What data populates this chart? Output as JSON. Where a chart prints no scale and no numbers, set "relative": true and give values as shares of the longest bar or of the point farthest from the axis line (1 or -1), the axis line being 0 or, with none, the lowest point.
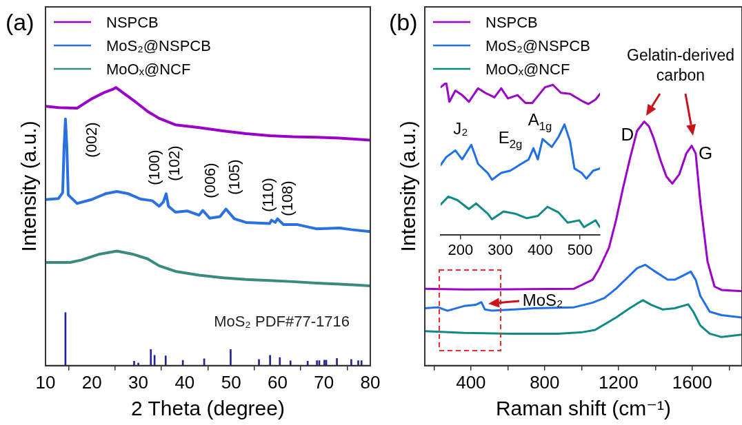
{
  "chart_data": [
    {
      "type": "line",
      "xlabel": "2 Theta (degree)",
      "ylabel": "Intensity (a.u.)",
      "relative": true,
      "xlim": [
        10,
        80
      ],
      "xticks": [
        10,
        20,
        30,
        40,
        50,
        60,
        70,
        80
      ],
      "legend": "top left",
      "marker": "none",
      "grid": false,
      "line_style": "solid",
      "series": [
        {
          "name": "NSPCB",
          "color": "#9a00c8",
          "x": [
            10,
            12.8,
            16.8,
            19.9,
            22.9,
            24.4,
            25.2,
            26.9,
            29.5,
            32.0,
            34.5,
            38.0,
            43.1,
            48.2,
            53.2,
            58.3,
            63.3,
            68.4,
            73.4,
            80
          ],
          "values": [
            0.933,
            0.928,
            0.926,
            0.959,
            0.984,
            0.993,
            1.0,
            0.979,
            0.947,
            0.914,
            0.889,
            0.866,
            0.856,
            0.844,
            0.834,
            0.827,
            0.823,
            0.821,
            0.818,
            0.811
          ]
        },
        {
          "name": "MoS₂@NSPCB",
          "color": "#2a70e0",
          "x": [
            10,
            12.8,
            13.7,
            14.0,
            14.3,
            14.6,
            14.9,
            16.8,
            19.9,
            22.9,
            25.4,
            27.9,
            30.5,
            33.0,
            34.5,
            35.4,
            36.0,
            36.5,
            38.0,
            40.6,
            43.1,
            43.9,
            45.4,
            47.6,
            48.9,
            50.7,
            53.2,
            58.3,
            58.7,
            59.5,
            60.0,
            61.3,
            64.3,
            68.4,
            73.4,
            75.9,
            80
          ],
          "values": [
            0.597,
            0.601,
            0.622,
            0.786,
            0.887,
            0.786,
            0.614,
            0.583,
            0.597,
            0.618,
            0.626,
            0.618,
            0.599,
            0.593,
            0.573,
            0.589,
            0.618,
            0.573,
            0.552,
            0.556,
            0.541,
            0.558,
            0.53,
            0.536,
            0.563,
            0.528,
            0.515,
            0.511,
            0.523,
            0.515,
            0.528,
            0.507,
            0.507,
            0.492,
            0.495,
            0.489,
            0.482
          ]
        },
        {
          "name": "MoOₓ@NCF",
          "color": "#3a8a80",
          "x": [
            10,
            15.3,
            17.8,
            21.4,
            25.4,
            29.0,
            32.0,
            34.5,
            38.0,
            43.1,
            48.2,
            53.2,
            58.3,
            63.3,
            68.4,
            73.4,
            80
          ],
          "values": [
            0.371,
            0.371,
            0.38,
            0.4,
            0.412,
            0.4,
            0.384,
            0.359,
            0.339,
            0.325,
            0.316,
            0.31,
            0.306,
            0.302,
            0.297,
            0.293,
            0.287
          ]
        },
        {
          "type": "bar",
          "name": "MoS₂ PDF#77-1716",
          "color": "#23239a",
          "x": [
            14.3,
            29.1,
            30.0,
            32.7,
            33.5,
            35.9,
            39.6,
            44.2,
            49.9,
            56.0,
            58.4,
            60.3,
            60.5,
            62.8,
            66.5,
            68.5,
            69.0,
            70.1,
            70.5,
            72.8,
            75.9,
            77.4,
            78.1
          ],
          "values": [
            0.191,
            0.016,
            0.009,
            0.058,
            0.037,
            0.035,
            0.019,
            0.025,
            0.058,
            0.022,
            0.037,
            null,
            0.029,
            0.017,
            0.016,
            0.018,
            0.018,
            0.02,
            0.02,
            0.026,
            0.022,
            0.018,
            0.018
          ]
        }
      ],
      "annotations": [
        "(a)",
        "(002)",
        "(100)",
        "(102)",
        "(006)",
        "(105)",
        "(110)",
        "(108)"
      ]
    },
    {
      "type": "line",
      "xlabel": "Raman shift (cm⁻¹)",
      "ylabel": "Intensity (a.u.)",
      "relative": true,
      "xlim": [
        150,
        1870
      ],
      "xticks": [
        {
          "value": 200,
          "label": null
        },
        400,
        {
          "value": 600,
          "label": null
        },
        800,
        {
          "value": 1000,
          "label": null
        },
        1200,
        {
          "value": 1400,
          "label": null
        },
        1600,
        {
          "value": 1800,
          "label": null
        }
      ],
      "legend": "top left",
      "marker": "none",
      "grid": false,
      "line_style": "solid",
      "series": [
        {
          "name": "NSPCB",
          "color": "#9b00cc",
          "x": [
            150,
            362,
            616,
            959,
            997,
            1060,
            1097,
            1149,
            1187,
            1225,
            1263,
            1301,
            1340,
            1365,
            1390,
            1429,
            1460,
            1492,
            1530,
            1568,
            1597,
            1619,
            1644,
            1683,
            1721,
            1759,
            1870
          ],
          "values": [
            0.315,
            0.312,
            0.313,
            0.315,
            0.329,
            0.352,
            0.399,
            0.484,
            0.596,
            0.728,
            0.85,
            0.962,
            1.0,
            0.981,
            0.934,
            0.84,
            0.775,
            0.746,
            0.784,
            0.869,
            0.901,
            0.869,
            0.671,
            0.427,
            0.324,
            0.31,
            0.305
          ]
        },
        {
          "name": "MoS₂@NSPCB",
          "color": "#1f6fe8",
          "x": [
            150,
            222,
            273,
            362,
            425,
            457,
            476,
            514,
            743,
            959,
            1060,
            1124,
            1187,
            1251,
            1301,
            1346,
            1390,
            1467,
            1505,
            1556,
            1592,
            1619,
            1644,
            1695,
            1759,
            1870
          ],
          "values": [
            0.235,
            0.239,
            0.225,
            0.244,
            0.249,
            0.26,
            0.23,
            0.225,
            0.235,
            0.239,
            0.258,
            0.277,
            0.315,
            0.362,
            0.399,
            0.413,
            0.39,
            0.352,
            0.352,
            0.371,
            0.385,
            0.352,
            0.286,
            0.221,
            0.207,
            0.197
          ]
        },
        {
          "name": "MoOₓ@NCF",
          "color": "#0f8a86",
          "x": [
            150,
            362,
            616,
            870,
            997,
            1073,
            1124,
            1187,
            1251,
            1301,
            1333,
            1378,
            1441,
            1505,
            1578,
            1606,
            1644,
            1695,
            1759,
            1870
          ],
          "values": [
            0.141,
            0.134,
            0.131,
            0.131,
            0.136,
            0.146,
            0.169,
            0.197,
            0.23,
            0.254,
            0.268,
            0.249,
            0.23,
            0.235,
            0.251,
            0.221,
            0.164,
            0.131,
            0.117,
            0.127
          ]
        }
      ],
      "annotations": [
        "(b)",
        "Gelatin-derived carbon",
        "D",
        "G",
        "MoS₂"
      ]
    },
    {
      "type": "line",
      "relative": true,
      "xlim": [
        150,
        550
      ],
      "xticks": [
        200,
        300,
        400,
        500
      ],
      "marker": "none",
      "grid": false,
      "line_style": "solid",
      "series": [
        {
          "color": "#9b00cc",
          "x": [
            150,
            164,
            172,
            187,
            204,
            221,
            244,
            262,
            285,
            302,
            319,
            343,
            363,
            380,
            394,
            412,
            432,
            452,
            475,
            504,
            521,
            539,
            550
          ],
          "values": [
            0.97,
            1.0,
            0.874,
            0.948,
            0.918,
            0.874,
            0.963,
            0.933,
            0.903,
            0.963,
            0.896,
            0.918,
            0.866,
            0.866,
            0.911,
            0.97,
            0.985,
            0.933,
            0.926,
            0.881,
            0.859,
            0.889,
            0.926
          ]
        },
        {
          "color": "#1f6fe8",
          "x": [
            150,
            164,
            187,
            204,
            227,
            244,
            268,
            279,
            302,
            325,
            348,
            371,
            383,
            394,
            406,
            429,
            446,
            461,
            475,
            486,
            504,
            516,
            533,
            550
          ],
          "values": [
            0.458,
            0.51,
            0.554,
            0.495,
            0.591,
            0.465,
            0.406,
            0.361,
            0.406,
            0.421,
            0.458,
            0.495,
            0.569,
            0.495,
            0.629,
            0.577,
            0.643,
            0.725,
            0.614,
            0.435,
            0.406,
            0.368,
            0.421,
            0.435
          ]
        },
        {
          "color": "#0f8a86",
          "x": [
            150,
            169,
            192,
            221,
            239,
            268,
            279,
            308,
            337,
            366,
            394,
            418,
            446,
            469,
            498,
            510,
            539,
            550
          ],
          "values": [
            0.198,
            0.25,
            0.227,
            0.168,
            0.205,
            0.138,
            0.101,
            0.152,
            0.138,
            0.108,
            0.123,
            0.183,
            0.146,
            0.079,
            0.094,
            0.049,
            0.094,
            0.049
          ]
        }
      ],
      "annotations": [
        "J₂",
        "E$_{2g}$",
        "A$_{1g}$"
      ]
    }
  ]
}
